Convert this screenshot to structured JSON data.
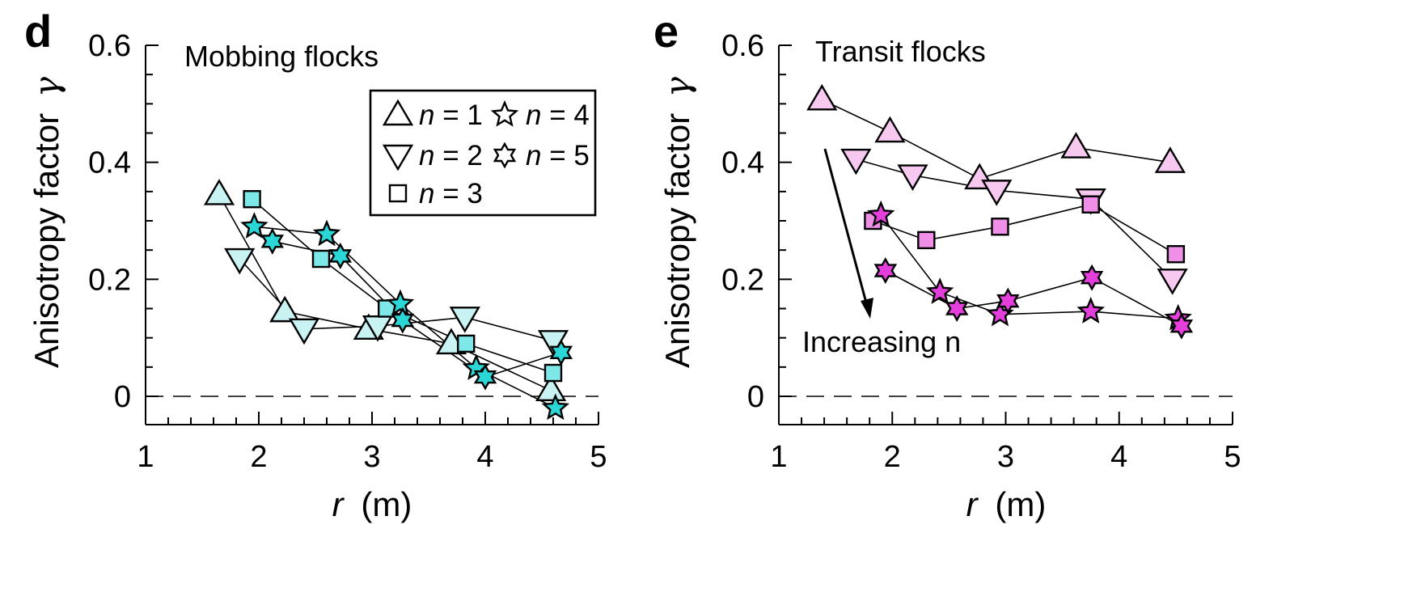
{
  "chart_data": [
    {
      "type": "scatter",
      "panel_label": "d",
      "annotation": "Mobbing flocks",
      "xlabel_var": "r",
      "xlabel_unit": "(m)",
      "ylabel": "Anisotropy factor",
      "ylabel_symbol": "γ",
      "xlim": [
        1,
        5
      ],
      "ylim": [
        -0.05,
        0.6
      ],
      "xticks": [
        1,
        2,
        3,
        4,
        5
      ],
      "yticks": [
        0,
        0.2,
        0.4,
        0.6
      ],
      "ytick_labels": [
        "0",
        "0.2",
        "0.4",
        "0.6"
      ],
      "reference_line": {
        "y": 0,
        "style": "dashed"
      },
      "marker_fill": "#7ee8e8",
      "legend": {
        "position": "top-right",
        "entries": [
          {
            "n": "1",
            "text": " = 1",
            "marker": "triangle-up"
          },
          {
            "n": "2",
            "text": " = 2",
            "marker": "triangle-down"
          },
          {
            "n": "3",
            "text": " = 3",
            "marker": "square"
          },
          {
            "n": "4",
            "text": " = 4",
            "marker": "star5"
          },
          {
            "n": "5",
            "text": " = 5",
            "marker": "star6"
          }
        ]
      },
      "series": [
        {
          "n": 1,
          "marker": "triangle-up",
          "fill": "#c9f3f3",
          "x": [
            1.65,
            2.23,
            2.97,
            3.7,
            4.58
          ],
          "y": [
            0.345,
            0.145,
            0.115,
            0.09,
            0.01
          ]
        },
        {
          "n": 2,
          "marker": "triangle-down",
          "fill": "#c9f3f3",
          "x": [
            1.83,
            2.4,
            3.05,
            3.82,
            4.6
          ],
          "y": [
            0.235,
            0.115,
            0.12,
            0.135,
            0.095
          ]
        },
        {
          "n": 3,
          "marker": "square",
          "fill": "#7ee8e8",
          "x": [
            1.94,
            2.55,
            3.13,
            3.83,
            4.6
          ],
          "y": [
            0.337,
            0.235,
            0.15,
            0.09,
            0.04
          ]
        },
        {
          "n": 4,
          "marker": "star5",
          "fill": "#2ad6d6",
          "x": [
            1.96,
            2.6,
            3.25,
            3.92,
            4.62
          ],
          "y": [
            0.29,
            0.277,
            0.158,
            0.048,
            -0.02
          ]
        },
        {
          "n": 5,
          "marker": "star6",
          "fill": "#2ad6d6",
          "x": [
            2.12,
            2.72,
            3.27,
            4.0,
            4.67
          ],
          "y": [
            0.265,
            0.24,
            0.13,
            0.033,
            0.075
          ]
        }
      ]
    },
    {
      "type": "scatter",
      "panel_label": "e",
      "annotation": "Transit flocks",
      "annotation2": "Increasing n",
      "xlabel_var": "r",
      "xlabel_unit": "(m)",
      "ylabel": "Anisotropy factor",
      "ylabel_symbol": "γ",
      "xlim": [
        1,
        5
      ],
      "ylim": [
        -0.05,
        0.6
      ],
      "xticks": [
        1,
        2,
        3,
        4,
        5
      ],
      "yticks": [
        0,
        0.2,
        0.4,
        0.6
      ],
      "ytick_labels": [
        "0",
        "0.2",
        "0.4",
        "0.6"
      ],
      "reference_line": {
        "y": 0,
        "style": "dashed"
      },
      "series": [
        {
          "n": 1,
          "marker": "triangle-up",
          "fill": "#f7c9f0",
          "x": [
            1.38,
            1.98,
            2.77,
            3.62,
            4.45
          ],
          "y": [
            0.507,
            0.452,
            0.372,
            0.425,
            0.4
          ]
        },
        {
          "n": 2,
          "marker": "triangle-down",
          "fill": "#f7c9f0",
          "x": [
            1.68,
            2.18,
            2.92,
            3.75,
            4.47
          ],
          "y": [
            0.405,
            0.378,
            0.352,
            0.337,
            0.2
          ]
        },
        {
          "n": 3,
          "marker": "square",
          "fill": "#f08fe8",
          "x": [
            1.83,
            2.3,
            2.95,
            3.75,
            4.5
          ],
          "y": [
            0.3,
            0.267,
            0.29,
            0.328,
            0.243
          ]
        },
        {
          "n": 4,
          "marker": "star5",
          "fill": "#e43fdc",
          "x": [
            1.9,
            2.42,
            2.95,
            3.75,
            4.52
          ],
          "y": [
            0.31,
            0.178,
            0.14,
            0.145,
            0.133
          ]
        },
        {
          "n": 5,
          "marker": "star6",
          "fill": "#e43fdc",
          "x": [
            1.94,
            2.57,
            3.02,
            3.76,
            4.55
          ],
          "y": [
            0.215,
            0.15,
            0.163,
            0.203,
            0.12
          ]
        }
      ]
    }
  ]
}
